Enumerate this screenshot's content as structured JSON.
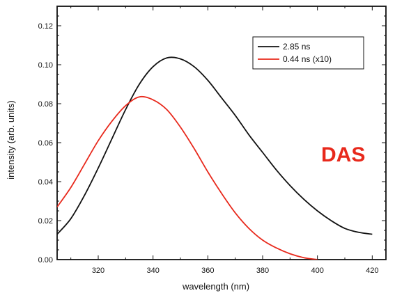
{
  "chart_data": {
    "type": "line",
    "title": "",
    "xlabel": "wavelength (nm)",
    "ylabel": "intensity (arb. units)",
    "xlim": [
      305,
      425
    ],
    "ylim": [
      0.0,
      0.13
    ],
    "x_ticks": [
      320,
      340,
      360,
      380,
      400,
      420
    ],
    "x_tick_labels": [
      "320",
      "340",
      "360",
      "380",
      "400",
      "420"
    ],
    "y_ticks": [
      0.0,
      0.02,
      0.04,
      0.06,
      0.08,
      0.1,
      0.12
    ],
    "y_tick_labels": [
      "0.00",
      "0.02",
      "0.04",
      "0.06",
      "0.08",
      "0.10",
      "0.12"
    ],
    "grid": false,
    "legend_position": "top-right",
    "annotation": {
      "text": "DAS",
      "color": "#e8291c"
    },
    "series": [
      {
        "name": "2.85 ns",
        "color": "#111111",
        "x": [
          305,
          310,
          315,
          320,
          325,
          330,
          335,
          340,
          345,
          350,
          355,
          360,
          365,
          370,
          375,
          380,
          385,
          390,
          395,
          400,
          405,
          410,
          415,
          420
        ],
        "y": [
          0.013,
          0.021,
          0.033,
          0.047,
          0.062,
          0.077,
          0.09,
          0.099,
          0.1035,
          0.103,
          0.099,
          0.092,
          0.083,
          0.074,
          0.064,
          0.055,
          0.046,
          0.038,
          0.031,
          0.025,
          0.02,
          0.016,
          0.014,
          0.013
        ]
      },
      {
        "name": "0.44 ns (x10)",
        "color": "#e8291c",
        "x": [
          305,
          310,
          315,
          320,
          325,
          330,
          335,
          340,
          345,
          350,
          355,
          360,
          365,
          370,
          375,
          380,
          385,
          390,
          395,
          400
        ],
        "y": [
          0.027,
          0.037,
          0.049,
          0.061,
          0.071,
          0.079,
          0.0835,
          0.082,
          0.077,
          0.068,
          0.057,
          0.045,
          0.034,
          0.024,
          0.016,
          0.01,
          0.006,
          0.003,
          0.001,
          0.0
        ]
      }
    ]
  }
}
